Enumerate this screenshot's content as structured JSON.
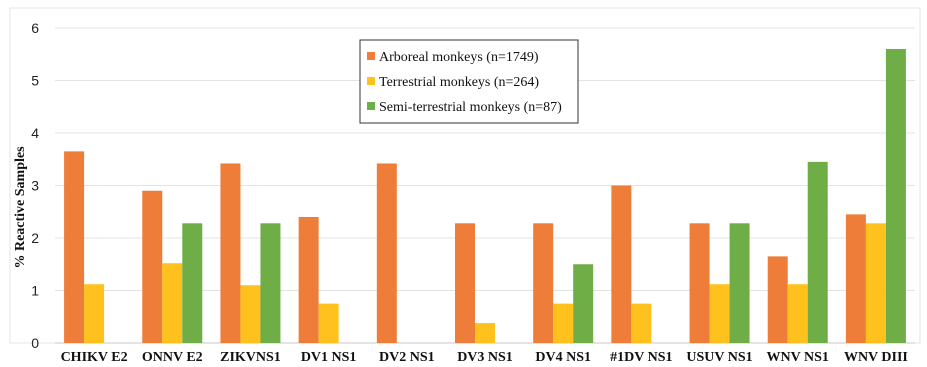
{
  "chart_data": {
    "type": "bar",
    "title": "",
    "xlabel": "",
    "ylabel": "% Reactive Samples",
    "ylim": [
      0,
      6
    ],
    "yticks": [
      0,
      1,
      2,
      3,
      4,
      5,
      6
    ],
    "grid": true,
    "legend_position": "top-center",
    "categories": [
      "CHIKV E2",
      "ONNV E2",
      "ZIKVNS1",
      "DV1 NS1",
      "DV2 NS1",
      "DV3 NS1",
      "DV4 NS1",
      "#1DV NS1",
      "USUV NS1",
      "WNV NS1",
      "WNV DIII"
    ],
    "series": [
      {
        "name": "Arboreal monkeys (n=1749)",
        "color": "#EE7D3A",
        "values": [
          3.65,
          2.9,
          3.42,
          2.4,
          3.42,
          2.28,
          2.28,
          3.0,
          2.28,
          1.65,
          2.45
        ]
      },
      {
        "name": "Terrestrial monkeys (n=264)",
        "color": "#FFC11E",
        "values": [
          1.12,
          1.52,
          1.1,
          0.75,
          0.0,
          0.38,
          0.75,
          0.75,
          1.12,
          1.12,
          2.28
        ]
      },
      {
        "name": "Semi-terrestrial monkeys (n=87)",
        "color": "#6FAD46",
        "values": [
          0.0,
          2.28,
          2.28,
          0.0,
          0.0,
          0.0,
          1.5,
          0.0,
          2.28,
          3.45,
          5.6
        ]
      }
    ]
  }
}
